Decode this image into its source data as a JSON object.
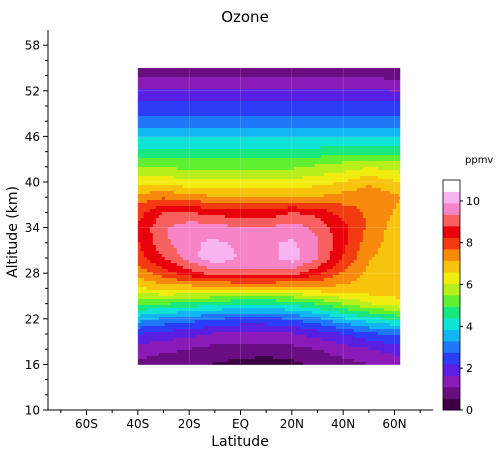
{
  "chart_data": {
    "type": "heatmap",
    "title": "Ozone",
    "xlabel": "Latitude",
    "ylabel": "Altitude (km)",
    "xlim": [
      -75,
      75
    ],
    "ylim": [
      10,
      60
    ],
    "x_ticks": [
      {
        "value": -60,
        "label": "60S"
      },
      {
        "value": -40,
        "label": "40S"
      },
      {
        "value": -20,
        "label": "20S"
      },
      {
        "value": 0,
        "label": "EQ"
      },
      {
        "value": 20,
        "label": "20N"
      },
      {
        "value": 40,
        "label": "40N"
      },
      {
        "value": 60,
        "label": "60N"
      }
    ],
    "y_ticks": [
      10,
      16,
      22,
      28,
      34,
      40,
      46,
      52,
      58
    ],
    "x": [
      -40,
      -30,
      -20,
      -10,
      0,
      10,
      20,
      30,
      40,
      50,
      62
    ],
    "y": [
      16,
      18,
      20,
      22,
      24,
      26,
      28,
      30,
      32,
      34,
      36,
      38,
      40,
      42,
      44,
      46,
      48,
      50,
      52,
      54,
      55
    ],
    "z": [
      [
        1.0,
        0.8,
        0.8,
        0.5,
        0.4,
        0.3,
        0.4,
        0.7,
        0.9,
        1.1,
        1.4
      ],
      [
        1.4,
        1.2,
        1.1,
        0.9,
        0.8,
        0.8,
        0.9,
        1.1,
        1.4,
        1.6,
        1.9
      ],
      [
        2.2,
        2.0,
        1.8,
        1.6,
        1.5,
        1.5,
        1.6,
        1.9,
        2.2,
        2.6,
        2.9
      ],
      [
        3.6,
        3.2,
        3.0,
        2.8,
        2.6,
        2.6,
        2.8,
        3.2,
        3.8,
        4.2,
        4.6
      ],
      [
        5.0,
        5.0,
        4.8,
        4.6,
        4.4,
        4.4,
        4.6,
        5.0,
        5.5,
        6.0,
        6.4
      ],
      [
        6.5,
        6.8,
        6.8,
        6.8,
        6.8,
        6.8,
        6.8,
        7.0,
        7.0,
        7.0,
        7.0
      ],
      [
        7.4,
        8.0,
        8.6,
        9.0,
        9.2,
        9.2,
        9.0,
        8.4,
        7.6,
        7.0,
        6.8
      ],
      [
        8.0,
        8.8,
        9.6,
        10.4,
        9.8,
        9.6,
        10.2,
        9.4,
        8.2,
        7.2,
        6.8
      ],
      [
        8.2,
        9.2,
        9.8,
        10.0,
        9.8,
        9.8,
        10.0,
        9.4,
        8.4,
        7.4,
        6.8
      ],
      [
        8.3,
        9.3,
        9.7,
        9.6,
        9.4,
        9.4,
        9.6,
        9.2,
        8.4,
        7.6,
        6.8
      ],
      [
        8.0,
        8.8,
        8.8,
        8.6,
        8.4,
        8.4,
        8.8,
        8.6,
        8.0,
        7.6,
        7.0
      ],
      [
        7.4,
        7.6,
        7.4,
        7.2,
        7.2,
        7.2,
        7.2,
        7.2,
        7.4,
        7.6,
        7.2
      ],
      [
        6.4,
        6.4,
        6.2,
        6.2,
        6.2,
        6.2,
        6.2,
        6.4,
        6.6,
        7.0,
        6.6
      ],
      [
        5.4,
        5.4,
        5.4,
        5.4,
        5.4,
        5.4,
        5.4,
        5.6,
        5.8,
        6.0,
        5.8
      ],
      [
        4.6,
        4.6,
        4.6,
        4.6,
        4.6,
        4.6,
        4.6,
        4.6,
        4.8,
        4.8,
        4.8
      ],
      [
        3.8,
        3.8,
        3.8,
        3.8,
        3.8,
        3.8,
        3.8,
        3.8,
        3.8,
        3.8,
        3.8
      ],
      [
        3.0,
        3.0,
        3.0,
        3.0,
        3.0,
        3.0,
        3.0,
        3.0,
        3.0,
        3.0,
        3.0
      ],
      [
        2.4,
        2.4,
        2.4,
        2.4,
        2.4,
        2.4,
        2.4,
        2.4,
        2.4,
        2.4,
        2.4
      ],
      [
        1.8,
        1.8,
        1.8,
        1.8,
        1.8,
        1.8,
        1.8,
        1.8,
        1.8,
        1.8,
        1.6
      ],
      [
        1.1,
        1.1,
        1.1,
        1.1,
        1.1,
        1.1,
        1.1,
        1.1,
        1.1,
        1.0,
        0.9
      ],
      [
        0.8,
        0.8,
        0.8,
        0.8,
        0.8,
        0.8,
        0.8,
        0.8,
        0.8,
        0.7,
        0.5
      ]
    ],
    "colorbar": {
      "label": "ppmv",
      "min": 0,
      "max": 11,
      "ticks": [
        0,
        2,
        4,
        6,
        8,
        10
      ],
      "colors": [
        "#3c0042",
        "#6a0d82",
        "#8a1bb8",
        "#5a1fe0",
        "#2b3df5",
        "#1f78f7",
        "#12b6f2",
        "#10e3d6",
        "#19e77f",
        "#5ff032",
        "#b6ef1b",
        "#f0ec10",
        "#f7c30d",
        "#f78a0d",
        "#f23b10",
        "#e8000a",
        "#f86060",
        "#f884c8",
        "#f8b4f0",
        "#ffffff"
      ]
    },
    "grid": true,
    "legend": "colorbar-right"
  }
}
